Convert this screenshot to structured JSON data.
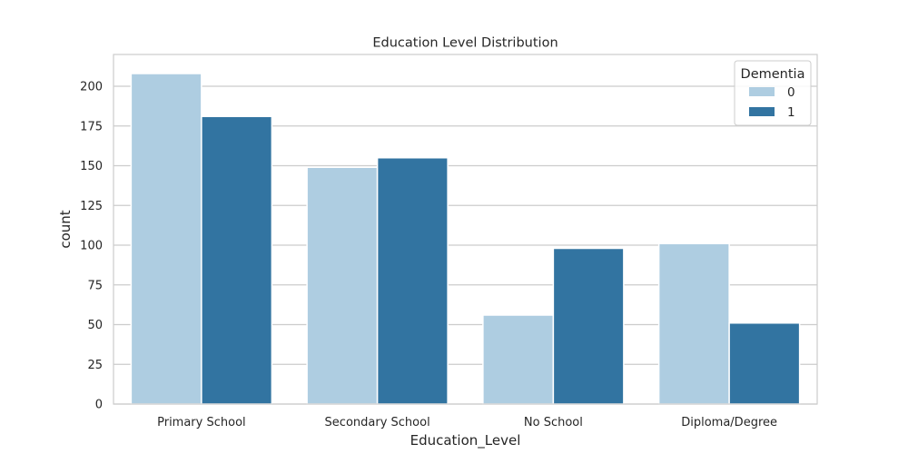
{
  "chart_data": {
    "type": "bar",
    "title": "Education Level Distribution",
    "xlabel": "Education_Level",
    "ylabel": "count",
    "categories": [
      "Primary School",
      "Secondary School",
      "No School",
      "Diploma/Degree"
    ],
    "series": [
      {
        "name": "0",
        "values": [
          208,
          149,
          56,
          101
        ],
        "color": "#aecde1"
      },
      {
        "name": "1",
        "values": [
          181,
          155,
          98,
          51
        ],
        "color": "#3274a1"
      }
    ],
    "ylim": [
      0,
      220
    ],
    "yticks": [
      0,
      25,
      50,
      75,
      100,
      125,
      150,
      175,
      200
    ],
    "legend": {
      "title": "Dementia",
      "placement": "top-right"
    },
    "grid": true
  }
}
